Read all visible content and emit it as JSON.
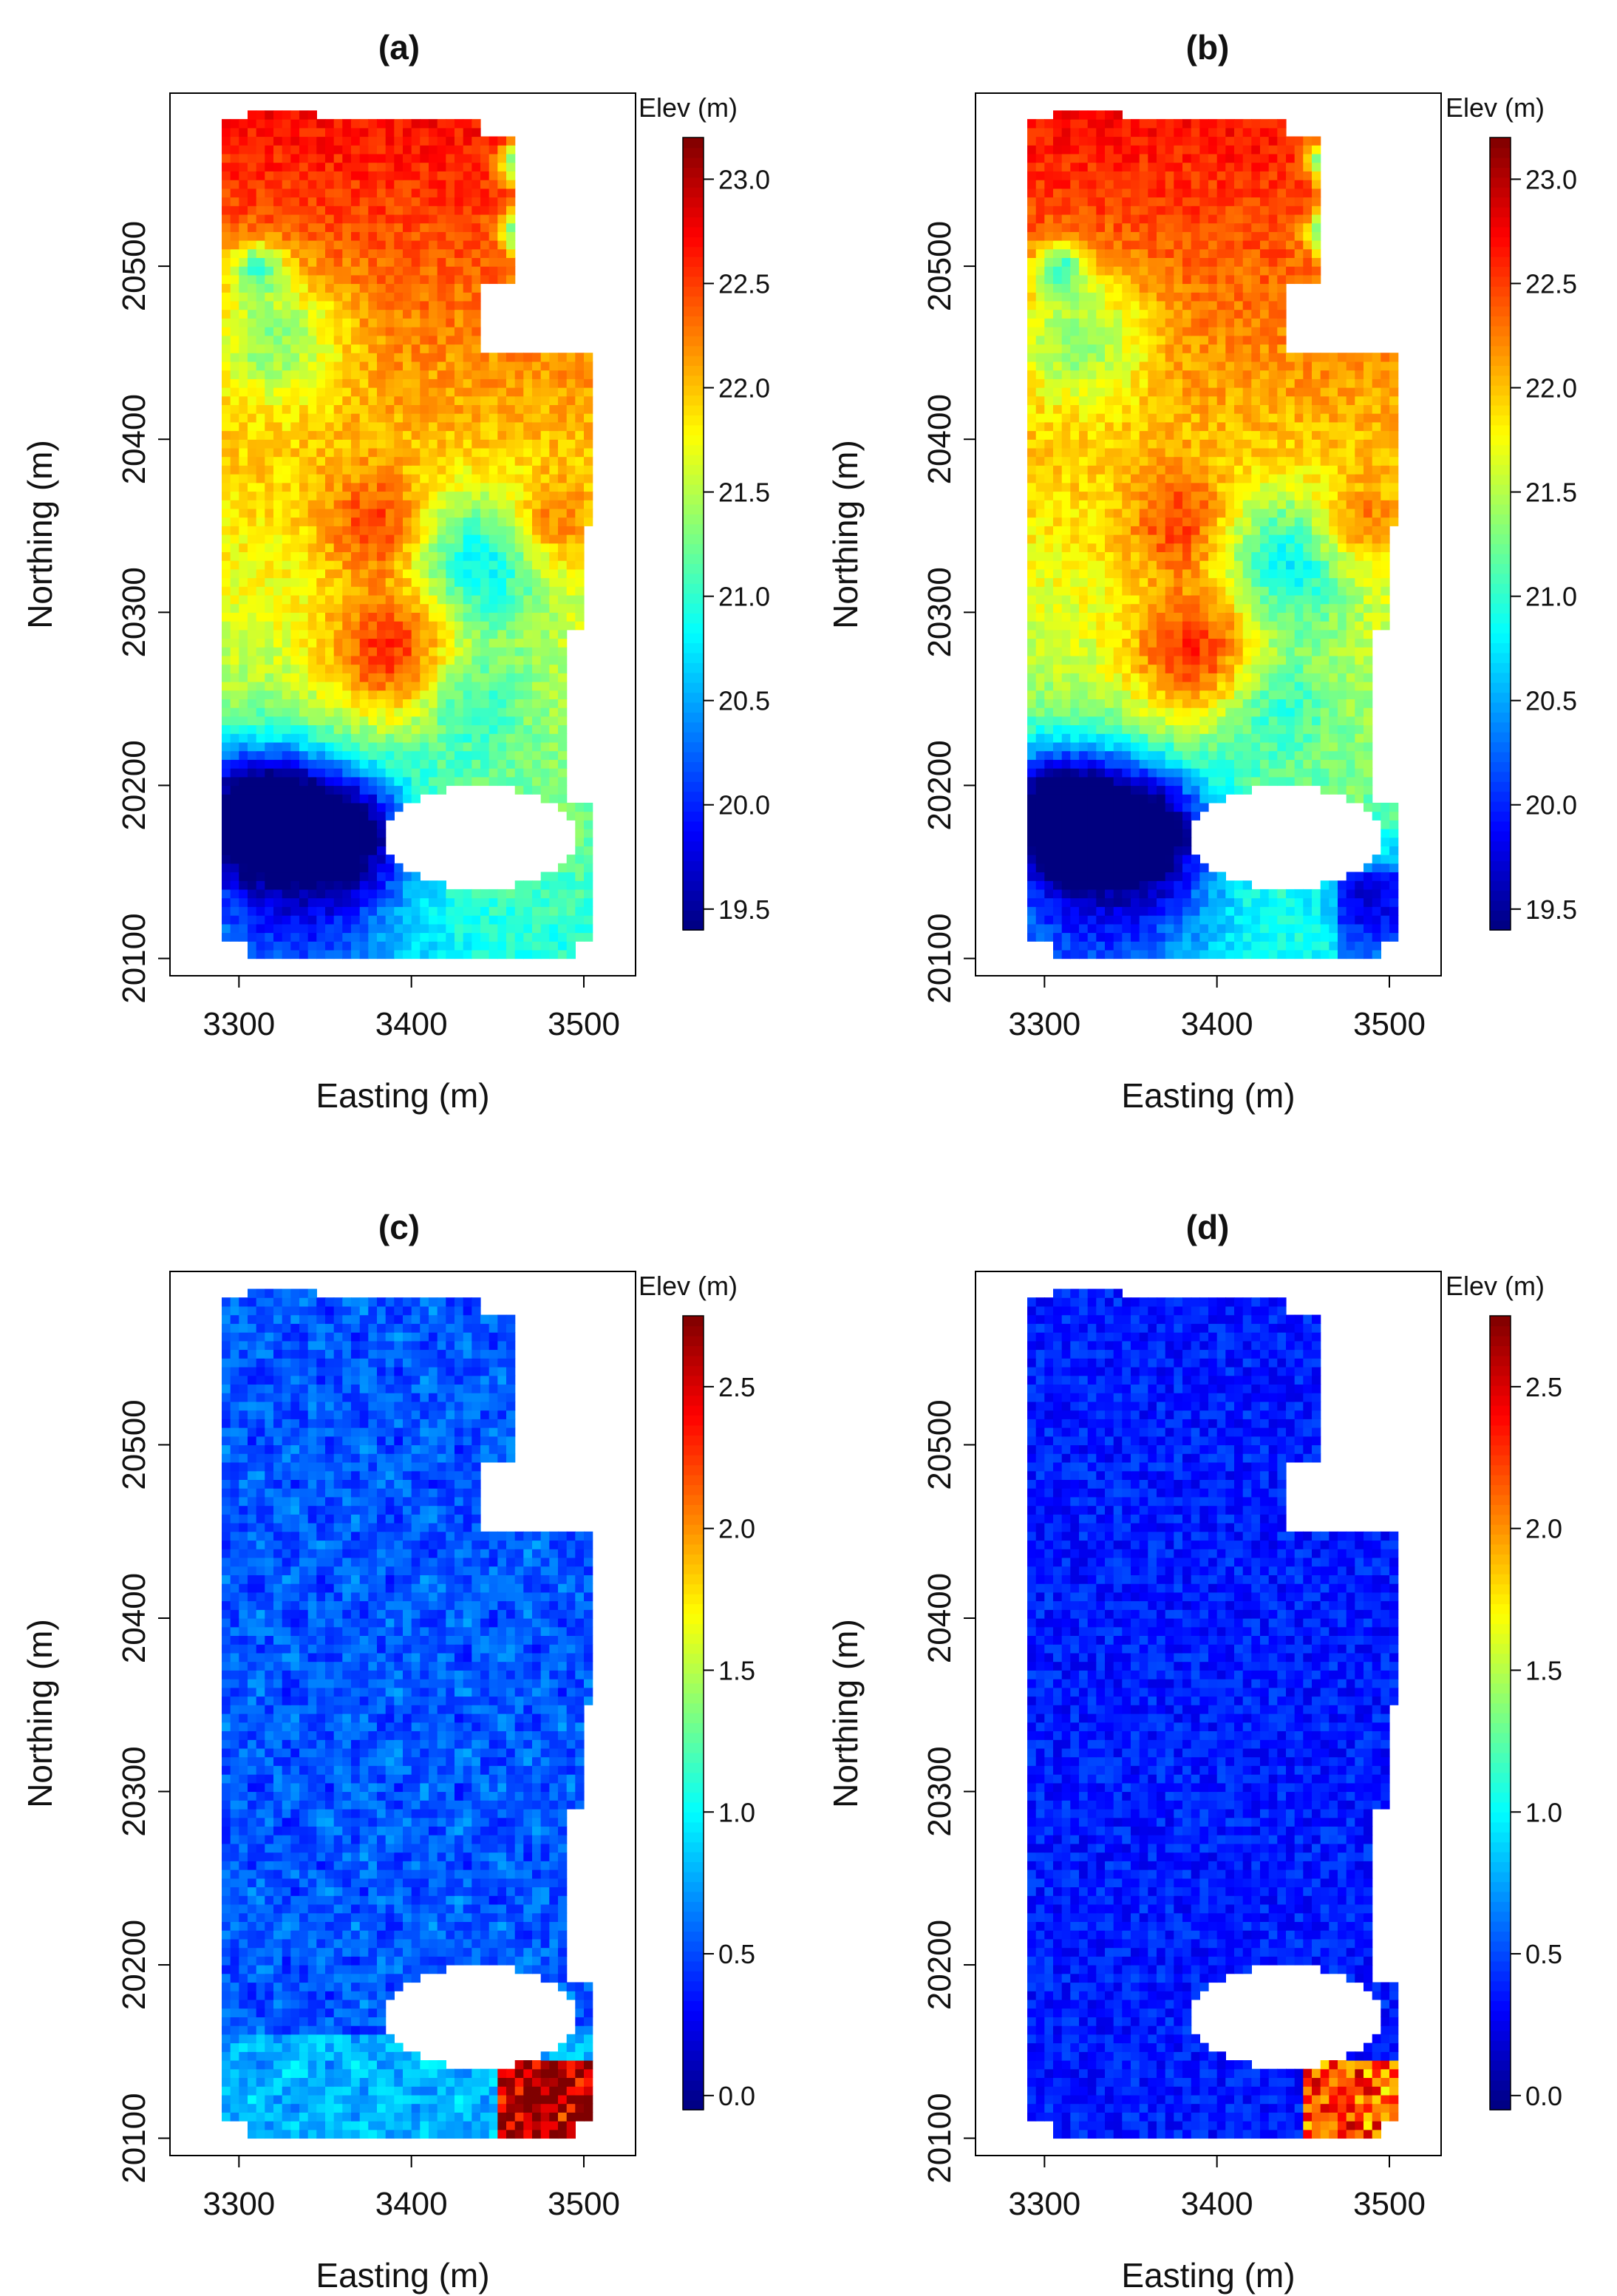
{
  "figure": {
    "colormap": [
      "#00007f",
      "#0000ff",
      "#007fff",
      "#00ffff",
      "#7fff7f",
      "#ffff00",
      "#ff7f00",
      "#ff0000",
      "#7f0000"
    ],
    "easting_label": "Easting (m)",
    "northing_label": "Northing (m)"
  },
  "chart_data": [
    {
      "type": "heatmap",
      "title": "(a)",
      "xlabel": "Easting (m)",
      "ylabel": "Northing (m)",
      "xlim": [
        3260,
        3530
      ],
      "ylim": [
        20090,
        20600
      ],
      "xticks": [
        "3300",
        "3400",
        "3500"
      ],
      "yticks": [
        "20100",
        "20200",
        "20300",
        "20400",
        "20500"
      ],
      "colorbar": {
        "title": "Elev (m)",
        "range": [
          19.4,
          23.2
        ],
        "ticks": [
          "19.5",
          "20.0",
          "20.5",
          "21.0",
          "21.5",
          "22.0",
          "22.5",
          "23.0"
        ]
      },
      "field": "elevation",
      "description": "Elevation surface; high (red) in north, low (blue) in southwest corner"
    },
    {
      "type": "heatmap",
      "title": "(b)",
      "xlabel": "Easting (m)",
      "ylabel": "Northing (m)",
      "xlim": [
        3260,
        3530
      ],
      "ylim": [
        20090,
        20600
      ],
      "xticks": [
        "3300",
        "3400",
        "3500"
      ],
      "yticks": [
        "20100",
        "20200",
        "20300",
        "20400",
        "20500"
      ],
      "colorbar": {
        "title": "Elev (m)",
        "range": [
          19.4,
          23.2
        ],
        "ticks": [
          "19.5",
          "20.0",
          "20.5",
          "21.0",
          "21.5",
          "22.0",
          "22.5",
          "23.0"
        ]
      },
      "field": "elevation",
      "description": "Elevation surface similar to (a), with low values also in southeast corner"
    },
    {
      "type": "heatmap",
      "title": "(c)",
      "xlabel": "Easting (m)",
      "ylabel": "Northing (m)",
      "xlim": [
        3260,
        3530
      ],
      "ylim": [
        20090,
        20600
      ],
      "xticks": [
        "3300",
        "3400",
        "3500"
      ],
      "yticks": [
        "20100",
        "20200",
        "20300",
        "20400",
        "20500"
      ],
      "colorbar": {
        "title": "Elev (m)",
        "range": [
          -0.05,
          2.75
        ],
        "ticks": [
          "0.0",
          "0.5",
          "1.0",
          "1.5",
          "2.0",
          "2.5"
        ]
      },
      "field": "error",
      "description": "Mostly low values (blue), high values (red) in southeast corner"
    },
    {
      "type": "heatmap",
      "title": "(d)",
      "xlabel": "Easting (m)",
      "ylabel": "Northing (m)",
      "xlim": [
        3260,
        3530
      ],
      "ylim": [
        20090,
        20600
      ],
      "xticks": [
        "3300",
        "3400",
        "3500"
      ],
      "yticks": [
        "20100",
        "20200",
        "20300",
        "20400",
        "20500"
      ],
      "colorbar": {
        "title": "Elev (m)",
        "range": [
          -0.05,
          2.75
        ],
        "ticks": [
          "0.0",
          "0.5",
          "1.0",
          "1.5",
          "2.0",
          "2.5"
        ]
      },
      "field": "error",
      "description": "Mostly low values (dark blue), high values (red) in southeast corner"
    }
  ]
}
